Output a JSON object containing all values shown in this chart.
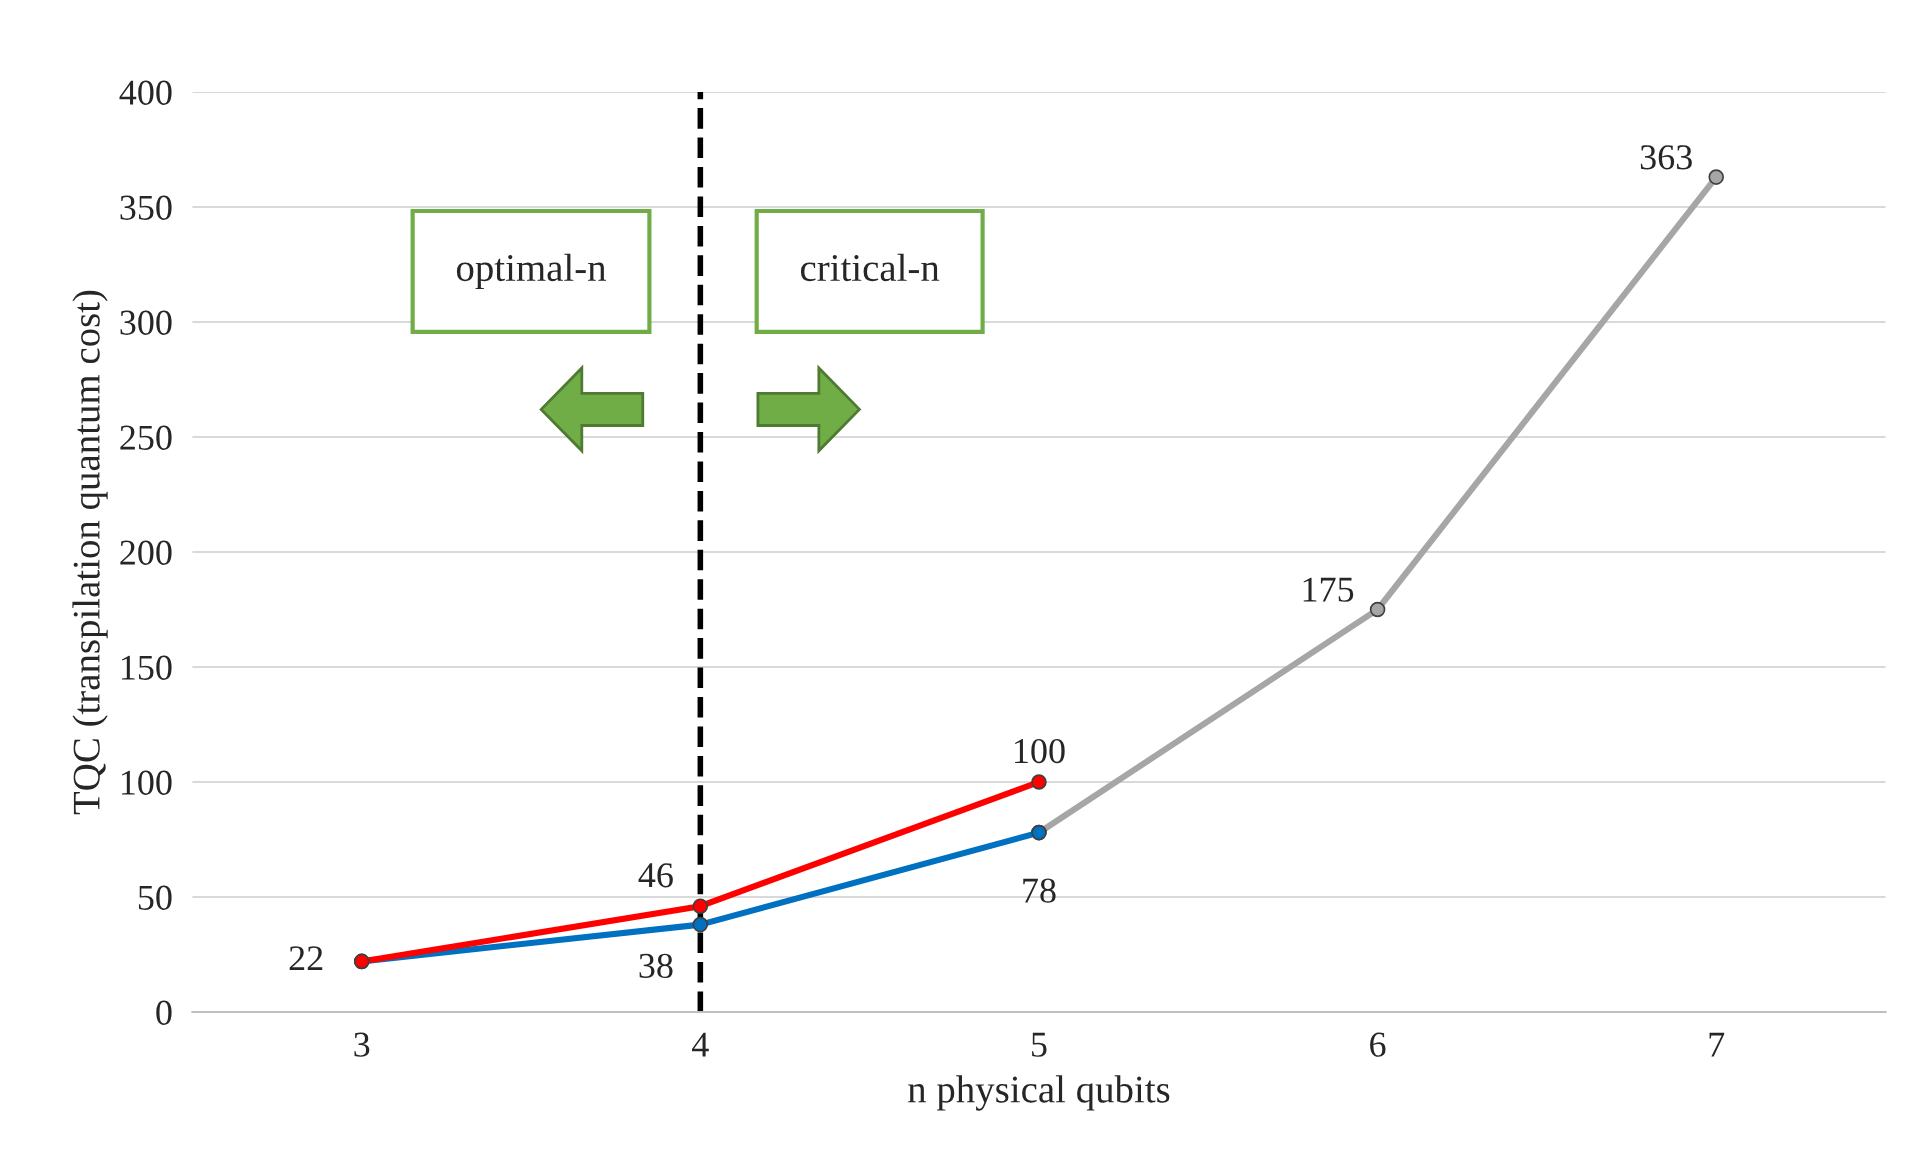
{
  "chart_data": {
    "type": "line",
    "xlabel": "n physical qubits",
    "ylabel": "TQC (transpilation quantum cost)",
    "x": [
      3,
      4,
      5,
      6,
      7
    ],
    "xlim": [
      2.5,
      7.5
    ],
    "xticks": [
      3,
      4,
      5,
      6,
      7
    ],
    "ylim": [
      0,
      400
    ],
    "yticks": [
      0,
      50,
      100,
      150,
      200,
      250,
      300,
      350,
      400
    ],
    "series": [
      {
        "color": "#a6a6a6",
        "values": [
          null,
          null,
          78,
          175,
          363
        ],
        "value_labels": [
          null,
          null,
          null,
          "175",
          "363"
        ]
      },
      {
        "color": "#0070c0",
        "values": [
          22,
          38,
          78,
          null,
          null
        ],
        "value_labels": [
          null,
          "38",
          "78",
          null,
          null
        ]
      },
      {
        "color": "#ff0000",
        "values": [
          22,
          46,
          100,
          null,
          null
        ],
        "value_labels": [
          "22",
          "46",
          "100",
          null,
          null
        ]
      }
    ],
    "ref_lines": [
      {
        "axis": "x",
        "value": 4,
        "color": "#000000",
        "line_style": "dashed"
      }
    ],
    "annotations": [
      "optimal-n",
      "critical-n"
    ],
    "grid": "y",
    "marker": "circle",
    "line_style": "solid"
  }
}
